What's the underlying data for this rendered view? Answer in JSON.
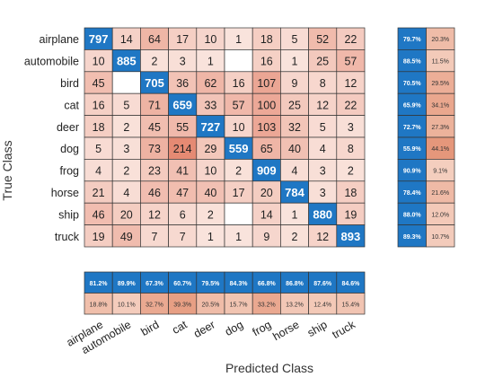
{
  "chart_data": {
    "type": "heatmap",
    "title": "",
    "xlabel": "Predicted Class",
    "ylabel": "True Class",
    "classes": [
      "airplane",
      "automobile",
      "bird",
      "cat",
      "deer",
      "dog",
      "frog",
      "horse",
      "ship",
      "truck"
    ],
    "matrix": [
      [
        797,
        14,
        64,
        17,
        10,
        1,
        18,
        5,
        52,
        22
      ],
      [
        10,
        885,
        2,
        3,
        1,
        null,
        16,
        1,
        25,
        57
      ],
      [
        45,
        null,
        705,
        36,
        62,
        16,
        107,
        9,
        8,
        12
      ],
      [
        16,
        5,
        71,
        659,
        33,
        57,
        100,
        25,
        12,
        22
      ],
      [
        18,
        2,
        45,
        55,
        727,
        10,
        103,
        32,
        5,
        3
      ],
      [
        5,
        3,
        73,
        214,
        29,
        559,
        65,
        40,
        4,
        8
      ],
      [
        4,
        2,
        23,
        41,
        10,
        2,
        909,
        4,
        3,
        2
      ],
      [
        21,
        4,
        46,
        47,
        40,
        17,
        20,
        784,
        3,
        18
      ],
      [
        46,
        20,
        12,
        6,
        2,
        null,
        14,
        1,
        880,
        19
      ],
      [
        19,
        49,
        7,
        7,
        1,
        1,
        9,
        2,
        12,
        893
      ]
    ],
    "row_summary": {
      "correct": [
        "79.7%",
        "88.5%",
        "70.5%",
        "65.9%",
        "72.7%",
        "55.9%",
        "90.9%",
        "78.4%",
        "88.0%",
        "89.3%"
      ],
      "incorrect": [
        "20.3%",
        "11.5%",
        "29.5%",
        "34.1%",
        "27.3%",
        "44.1%",
        "9.1%",
        "21.6%",
        "12.0%",
        "10.7%"
      ]
    },
    "column_summary": {
      "correct": [
        "81.2%",
        "89.9%",
        "67.3%",
        "60.7%",
        "79.5%",
        "84.3%",
        "66.8%",
        "86.8%",
        "87.6%",
        "84.6%"
      ],
      "incorrect": [
        "18.8%",
        "10.1%",
        "32.7%",
        "39.3%",
        "20.5%",
        "15.7%",
        "33.2%",
        "13.2%",
        "12.4%",
        "15.4%"
      ]
    },
    "colors": {
      "diagonal": "#1f77c4",
      "off_low": "#fbeae4",
      "off_high": "#e58a73",
      "summary_correct": "#1f77c4",
      "summary_incorrect_low": "#f8dccf",
      "summary_incorrect_high": "#e59679",
      "grid": "#333333"
    }
  }
}
